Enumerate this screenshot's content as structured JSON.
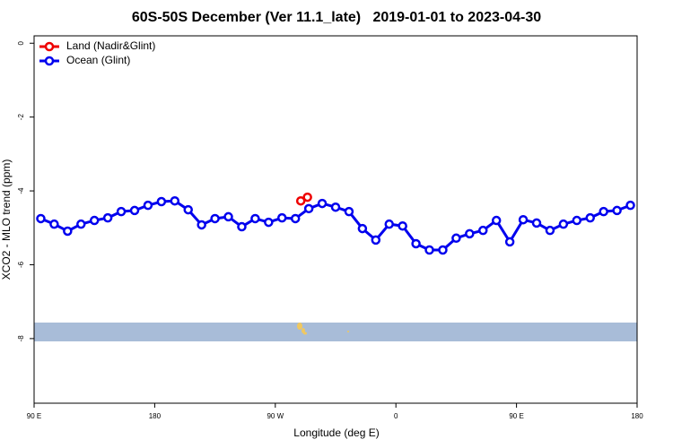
{
  "chart_data": {
    "type": "line",
    "title": "60S-50S December (Ver 11.1_late)   2019-01-01 to 2023-04-30",
    "x_label": "Longitude (deg E)",
    "y_label": "XCO2 - MLO trend (ppm)",
    "xlim": [
      90,
      540
    ],
    "ylim": [
      -9.75,
      0.2
    ],
    "xticks": [
      {
        "value": 90,
        "label": "90 E"
      },
      {
        "value": 180,
        "label": "180"
      },
      {
        "value": 270,
        "label": "90 W"
      },
      {
        "value": 360,
        "label": "0"
      },
      {
        "value": 450,
        "label": "90 E"
      },
      {
        "value": 540,
        "label": "180"
      }
    ],
    "yticks": [
      0,
      -2,
      -4,
      -6,
      -8
    ],
    "legend_position": "top-left",
    "series": [
      {
        "name": "Land (Nadir&Glint)",
        "color": "#ee0000",
        "x": [
          289,
          294
        ],
        "values": [
          -4.27,
          -4.17
        ]
      },
      {
        "name": "Ocean (Glint)",
        "color": "#0000ee",
        "x": [
          95,
          105,
          115,
          125,
          135,
          145,
          155,
          165,
          175,
          185,
          195,
          205,
          215,
          225,
          235,
          245,
          255,
          265,
          275,
          285,
          295,
          305,
          315,
          325,
          335,
          345,
          355,
          365,
          375,
          385,
          395,
          405,
          415,
          425,
          435,
          445,
          455,
          465,
          475,
          485,
          495,
          505,
          515,
          525,
          535
        ],
        "values": [
          -4.75,
          -4.9,
          -5.09,
          -4.9,
          -4.8,
          -4.73,
          -4.56,
          -4.53,
          -4.39,
          -4.29,
          -4.27,
          -4.51,
          -4.92,
          -4.75,
          -4.7,
          -4.97,
          -4.75,
          -4.85,
          -4.73,
          -4.75,
          -4.48,
          -4.34,
          -4.44,
          -4.56,
          -5.02,
          -5.33,
          -4.9,
          -4.95,
          -5.43,
          -5.6,
          -5.6,
          -5.28,
          -5.16,
          -5.07,
          -4.8,
          -5.38,
          -4.78,
          -4.87,
          -5.07,
          -4.9,
          -4.8,
          -4.73,
          -4.56,
          -4.53,
          -4.39
        ]
      }
    ]
  }
}
